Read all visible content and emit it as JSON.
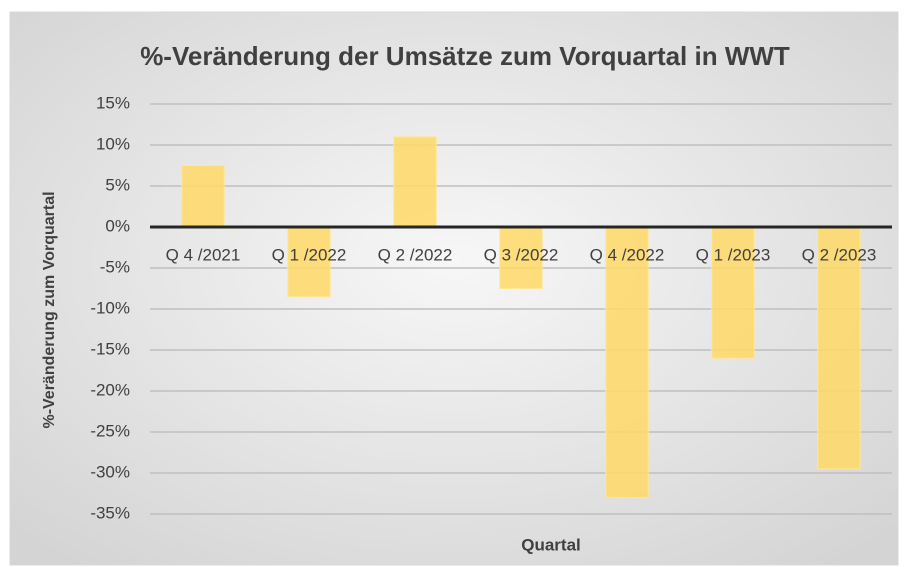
{
  "chart_data": {
    "type": "bar",
    "title": "%-Veränderung der Umsätze zum Vorquartal in WWT",
    "x_label": "Quartal",
    "y_label": "%-Veränderung zum Vorquartal",
    "categories": [
      "Q 4 /2021",
      "Q 1 /2022",
      "Q 2 /2022",
      "Q 3 /2022",
      "Q 4 /2022",
      "Q 1 /2023",
      "Q 2 /2023"
    ],
    "values": [
      7.5,
      -8.5,
      11,
      -7.5,
      -33,
      -16,
      -29.5
    ],
    "color": "#ffd966",
    "ylim": [
      -35,
      15
    ],
    "yticks": [
      {
        "value": 15,
        "label": "15%"
      },
      {
        "value": 10,
        "label": "10%"
      },
      {
        "value": 5,
        "label": "5%"
      },
      {
        "value": 0,
        "label": "0%"
      },
      {
        "value": -5,
        "label": "-5%"
      },
      {
        "value": -10,
        "label": "-10%"
      },
      {
        "value": -15,
        "label": "-15%"
      },
      {
        "value": -20,
        "label": "-20%"
      },
      {
        "value": -25,
        "label": "-25%"
      },
      {
        "value": -30,
        "label": "-30%"
      },
      {
        "value": -35,
        "label": "-35%"
      }
    ],
    "grid": true
  }
}
